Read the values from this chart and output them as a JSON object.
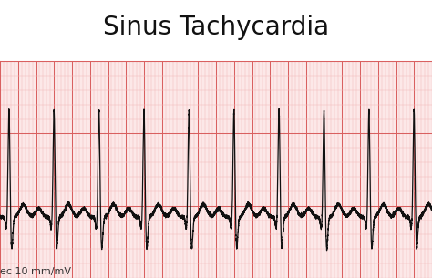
{
  "title": "Sinus Tachycardia",
  "title_fontsize": 20,
  "title_fontweight": "normal",
  "annotation": "ec 10 mm/mV",
  "annotation_fontsize": 8,
  "white_bg": "#ffffff",
  "ecg_bg_color": "#fce8e8",
  "grid_minor_color": "#f2b8b8",
  "grid_major_color": "#d96060",
  "ecg_color": "#111111",
  "ecg_linewidth": 0.9,
  "figsize": [
    4.74,
    3.05
  ],
  "dpi": 100,
  "heart_rate": 120,
  "p_amp": 0.06,
  "q_amp": -0.08,
  "r_amp": 0.75,
  "s_amp": -0.22,
  "t_amp": 0.09,
  "noise_amp": 0.006,
  "t_total": 4.8,
  "fs": 2000,
  "y_min": -0.5,
  "y_max": 1.0,
  "baseline_y": -0.08
}
